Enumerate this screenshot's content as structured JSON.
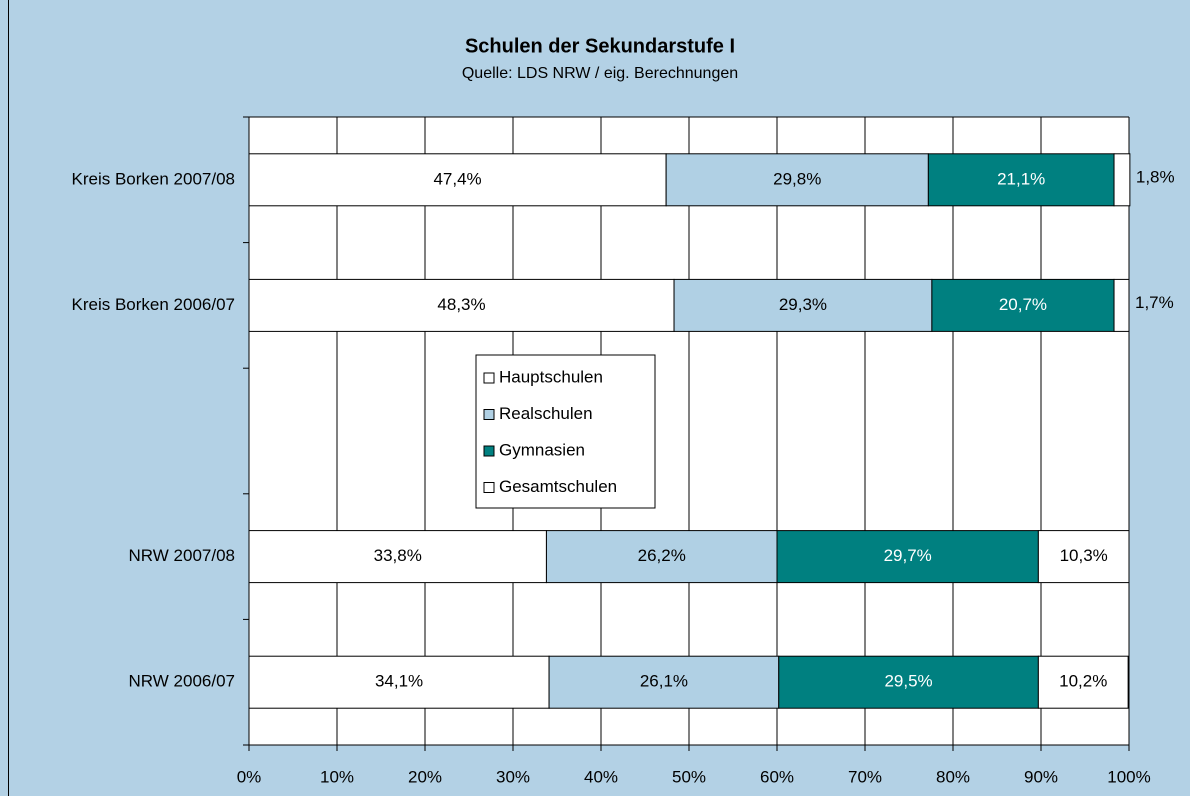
{
  "chart_data": {
    "type": "stacked-bar-horizontal",
    "title": "Schulen der Sekundarstufe I",
    "subtitle": "Quelle: LDS NRW / eig. Berechnungen",
    "categories": [
      "Kreis Borken 2007/08",
      "Kreis Borken 2006/07",
      null,
      "NRW 2007/08",
      "NRW 2006/07"
    ],
    "series": [
      {
        "name": "Hauptschulen",
        "color": "#ffffff",
        "values": [
          47.4,
          48.3,
          null,
          33.8,
          34.1
        ],
        "value_labels": [
          "47,4%",
          "48,3%",
          null,
          "33,8%",
          "34,1%"
        ]
      },
      {
        "name": "Realschulen",
        "color": "#b0d0e4",
        "values": [
          29.8,
          29.3,
          null,
          26.2,
          26.1
        ],
        "value_labels": [
          "29,8%",
          "29,3%",
          null,
          "26,2%",
          "26,1%"
        ]
      },
      {
        "name": "Gymnasien",
        "color": "#008080",
        "values": [
          21.1,
          20.7,
          null,
          29.7,
          29.5
        ],
        "value_labels": [
          "21,1%",
          "20,7%",
          null,
          "29,7%",
          "29,5%"
        ]
      },
      {
        "name": "Gesamtschulen",
        "color": "#ffffff",
        "values": [
          1.8,
          1.7,
          null,
          10.3,
          10.2
        ],
        "value_labels": [
          "1,8%",
          "1,7%",
          null,
          "10,3%",
          "10,2%"
        ]
      }
    ],
    "xlim": [
      0,
      100
    ],
    "xticks": [
      {
        "value": 0,
        "label": "0%"
      },
      {
        "value": 10,
        "label": "10%"
      },
      {
        "value": 20,
        "label": "20%"
      },
      {
        "value": 30,
        "label": "30%"
      },
      {
        "value": 40,
        "label": "40%"
      },
      {
        "value": 50,
        "label": "50%"
      },
      {
        "value": 60,
        "label": "60%"
      },
      {
        "value": 70,
        "label": "70%"
      },
      {
        "value": 80,
        "label": "80%"
      },
      {
        "value": 90,
        "label": "90%"
      },
      {
        "value": 100,
        "label": "100%"
      }
    ],
    "grid": true,
    "legend": "center"
  }
}
